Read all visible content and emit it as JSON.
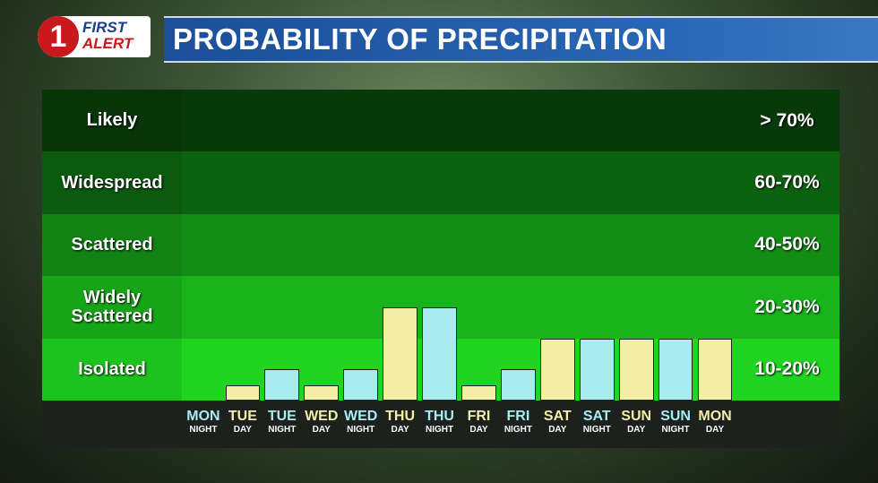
{
  "chart_data": {
    "type": "bar",
    "logo": {
      "badge": "1",
      "line1": "FIRST",
      "line2": "ALERT"
    },
    "title": "PROBABILITY OF PRECIPITATION",
    "bands": [
      {
        "label": "Isolated",
        "range": "10-20%",
        "color": "#20d420"
      },
      {
        "label": "Widely Scattered",
        "range": "20-30%",
        "color": "#19b41b"
      },
      {
        "label": "Scattered",
        "range": "40-50%",
        "color": "#138e15"
      },
      {
        "label": "Widespread",
        "range": "60-70%",
        "color": "#0d6210"
      },
      {
        "label": "Likely",
        "range": "> 70%",
        "color": "#083a09"
      }
    ],
    "ylim": [
      0,
      5
    ],
    "categories": [
      {
        "day": "MON",
        "part": "NIGHT"
      },
      {
        "day": "TUE",
        "part": "DAY"
      },
      {
        "day": "TUE",
        "part": "NIGHT"
      },
      {
        "day": "WED",
        "part": "DAY"
      },
      {
        "day": "WED",
        "part": "NIGHT"
      },
      {
        "day": "THU",
        "part": "DAY"
      },
      {
        "day": "THU",
        "part": "NIGHT"
      },
      {
        "day": "FRI",
        "part": "DAY"
      },
      {
        "day": "FRI",
        "part": "NIGHT"
      },
      {
        "day": "SAT",
        "part": "DAY"
      },
      {
        "day": "SAT",
        "part": "NIGHT"
      },
      {
        "day": "SUN",
        "part": "DAY"
      },
      {
        "day": "SUN",
        "part": "NIGHT"
      },
      {
        "day": "MON",
        "part": "DAY"
      }
    ],
    "values": [
      0,
      0.25,
      0.5,
      0.25,
      0.5,
      1.5,
      1.5,
      0.25,
      0.5,
      1,
      1,
      1,
      1,
      1
    ],
    "colors": [
      "#a8ecf2",
      "#f4eea8",
      "#a8ecf2",
      "#f4eea8",
      "#a8ecf2",
      "#f4eea8",
      "#a8ecf2",
      "#f4eea8",
      "#a8ecf2",
      "#f4eea8",
      "#a8ecf2",
      "#f4eea8",
      "#a8ecf2",
      "#f4eea8"
    ]
  }
}
